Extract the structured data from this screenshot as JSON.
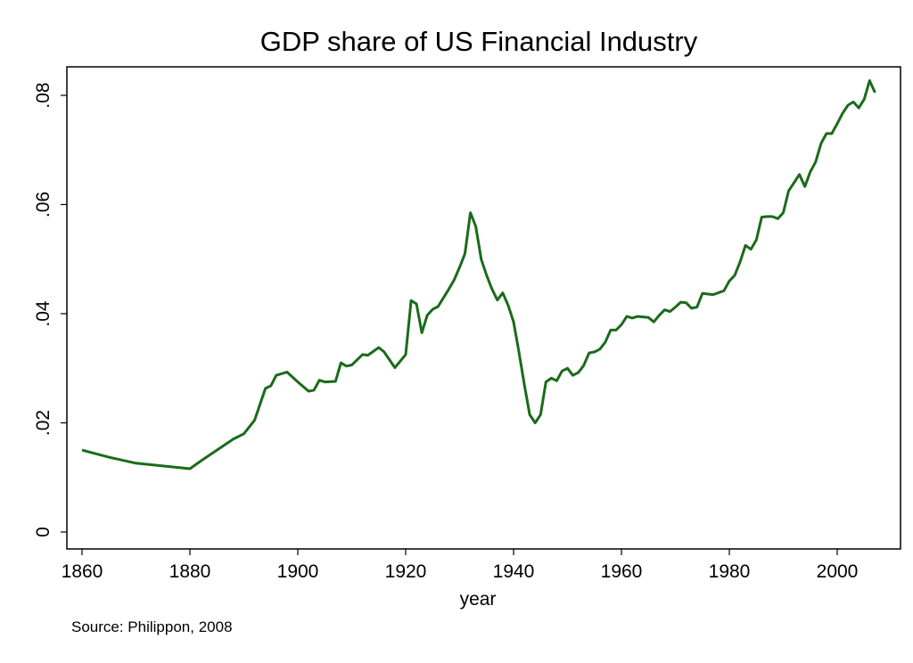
{
  "chart_data": {
    "type": "line",
    "title": "GDP share of US Financial Industry",
    "xlabel": "year",
    "ylabel": "",
    "note": "Source: Philippon, 2008",
    "xlim": [
      1857,
      2011
    ],
    "ylim": [
      -0.0033,
      0.0855
    ],
    "x_ticks": [
      1860,
      1880,
      1900,
      1920,
      1940,
      1960,
      1980,
      2000
    ],
    "x_tick_labels": [
      "1860",
      "1880",
      "1900",
      "1920",
      "1940",
      "1960",
      "1980",
      "2000"
    ],
    "y_ticks": [
      0,
      0.02,
      0.04,
      0.06,
      0.08
    ],
    "y_tick_labels": [
      "0",
      ".02",
      ".04",
      ".06",
      ".08"
    ],
    "grid": false,
    "line_color": "#1a6b1a",
    "series": [
      {
        "x": [
          1860,
          1865,
          1870,
          1875,
          1880,
          1882,
          1885,
          1888,
          1890,
          1892,
          1894,
          1895,
          1896,
          1898,
          1900,
          1902,
          1903,
          1904,
          1905,
          1907,
          1908,
          1909,
          1910,
          1912,
          1913,
          1915,
          1916,
          1918,
          1920,
          1921,
          1922,
          1923,
          1924,
          1925,
          1926,
          1928,
          1929,
          1930,
          1931,
          1932,
          1933,
          1934,
          1935,
          1936,
          1937,
          1938,
          1939,
          1940,
          1941,
          1942,
          1943,
          1944,
          1945,
          1946,
          1947,
          1948,
          1949,
          1950,
          1951,
          1952,
          1953,
          1954,
          1955,
          1956,
          1957,
          1958,
          1959,
          1960,
          1961,
          1962,
          1963,
          1965,
          1966,
          1967,
          1968,
          1969,
          1970,
          1971,
          1972,
          1973,
          1974,
          1975,
          1977,
          1979,
          1980,
          1981,
          1982,
          1983,
          1984,
          1985,
          1986,
          1987,
          1988,
          1989,
          1990,
          1991,
          1992,
          1993,
          1994,
          1995,
          1996,
          1997,
          1998,
          1999,
          2000,
          2001,
          2002,
          2003,
          2004,
          2005,
          2006,
          2007
        ],
        "y": [
          0.015,
          0.0137,
          0.0126,
          0.0121,
          0.0116,
          0.013,
          0.015,
          0.017,
          0.018,
          0.0205,
          0.0263,
          0.0268,
          0.0287,
          0.0293,
          0.0275,
          0.0258,
          0.026,
          0.0278,
          0.0275,
          0.0276,
          0.031,
          0.0304,
          0.0306,
          0.0325,
          0.0324,
          0.0338,
          0.033,
          0.0301,
          0.0325,
          0.0424,
          0.0418,
          0.0365,
          0.0397,
          0.0408,
          0.0413,
          0.0445,
          0.0462,
          0.0485,
          0.051,
          0.0585,
          0.056,
          0.05,
          0.047,
          0.0445,
          0.0425,
          0.0438,
          0.0415,
          0.0385,
          0.033,
          0.027,
          0.0215,
          0.02,
          0.0215,
          0.0275,
          0.0282,
          0.0277,
          0.0295,
          0.03,
          0.0287,
          0.0292,
          0.0305,
          0.0328,
          0.033,
          0.0335,
          0.0348,
          0.037,
          0.037,
          0.038,
          0.0395,
          0.0392,
          0.0395,
          0.0393,
          0.0385,
          0.0397,
          0.0407,
          0.0404,
          0.0412,
          0.0421,
          0.042,
          0.041,
          0.0412,
          0.0437,
          0.0435,
          0.0442,
          0.046,
          0.047,
          0.0495,
          0.0525,
          0.0518,
          0.0535,
          0.0577,
          0.0578,
          0.0578,
          0.0574,
          0.0585,
          0.0625,
          0.064,
          0.0655,
          0.0633,
          0.066,
          0.0678,
          0.0712,
          0.073,
          0.073,
          0.0748,
          0.0767,
          0.0782,
          0.0788,
          0.0777,
          0.0793,
          0.0827,
          0.0805
        ]
      }
    ]
  }
}
